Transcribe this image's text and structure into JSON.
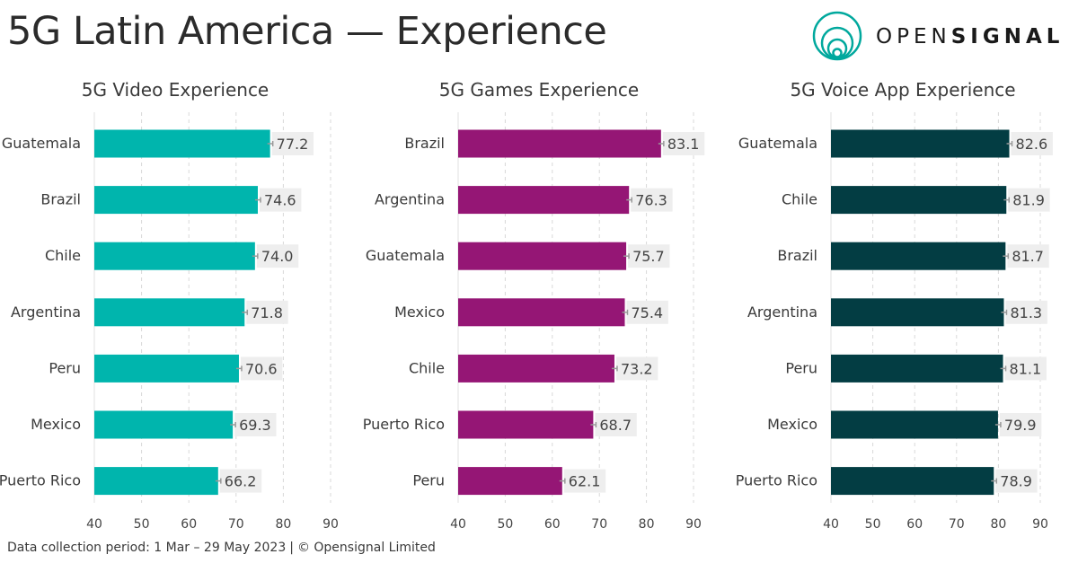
{
  "page_title": "5G Latin America — Experience",
  "brand": {
    "prefix": "OPEN",
    "suffix": "SIGNAL",
    "icon": "opensignal-logo-icon"
  },
  "footer": {
    "period": "Data collection period: 1 Mar – 29 May 2023",
    "separator": "|",
    "copyright": "© Opensignal Limited"
  },
  "chart_data": [
    {
      "type": "bar",
      "orientation": "horizontal",
      "title": "5G Video Experience",
      "color": "#00b5ad",
      "categories": [
        "Guatemala",
        "Brazil",
        "Chile",
        "Argentina",
        "Peru",
        "Mexico",
        "Puerto Rico"
      ],
      "values": [
        77.2,
        74.6,
        74.0,
        71.8,
        70.6,
        69.3,
        66.2
      ],
      "labels": [
        "77.2",
        "74.6",
        "74.0",
        "71.8",
        "70.6",
        "69.3",
        "66.2"
      ],
      "xlim": [
        40,
        90
      ],
      "ticks": [
        40,
        50,
        60,
        70,
        80,
        90
      ]
    },
    {
      "type": "bar",
      "orientation": "horizontal",
      "title": "5G Games Experience",
      "color": "#951675",
      "categories": [
        "Brazil",
        "Argentina",
        "Guatemala",
        "Mexico",
        "Chile",
        "Puerto Rico",
        "Peru"
      ],
      "values": [
        83.1,
        76.3,
        75.7,
        75.4,
        73.2,
        68.7,
        62.1
      ],
      "labels": [
        "83.1",
        "76.3",
        "75.7",
        "75.4",
        "73.2",
        "68.7",
        "62.1"
      ],
      "xlim": [
        40,
        90
      ],
      "ticks": [
        40,
        50,
        60,
        70,
        80,
        90
      ]
    },
    {
      "type": "bar",
      "orientation": "horizontal",
      "title": "5G Voice App Experience",
      "color": "#033d43",
      "categories": [
        "Guatemala",
        "Chile",
        "Brazil",
        "Argentina",
        "Peru",
        "Mexico",
        "Puerto Rico"
      ],
      "values": [
        82.6,
        81.9,
        81.7,
        81.3,
        81.1,
        79.9,
        78.9
      ],
      "labels": [
        "82.6",
        "81.9",
        "81.7",
        "81.3",
        "81.1",
        "79.9",
        "78.9"
      ],
      "xlim": [
        40,
        90
      ],
      "ticks": [
        40,
        50,
        60,
        70,
        80,
        90
      ]
    }
  ]
}
